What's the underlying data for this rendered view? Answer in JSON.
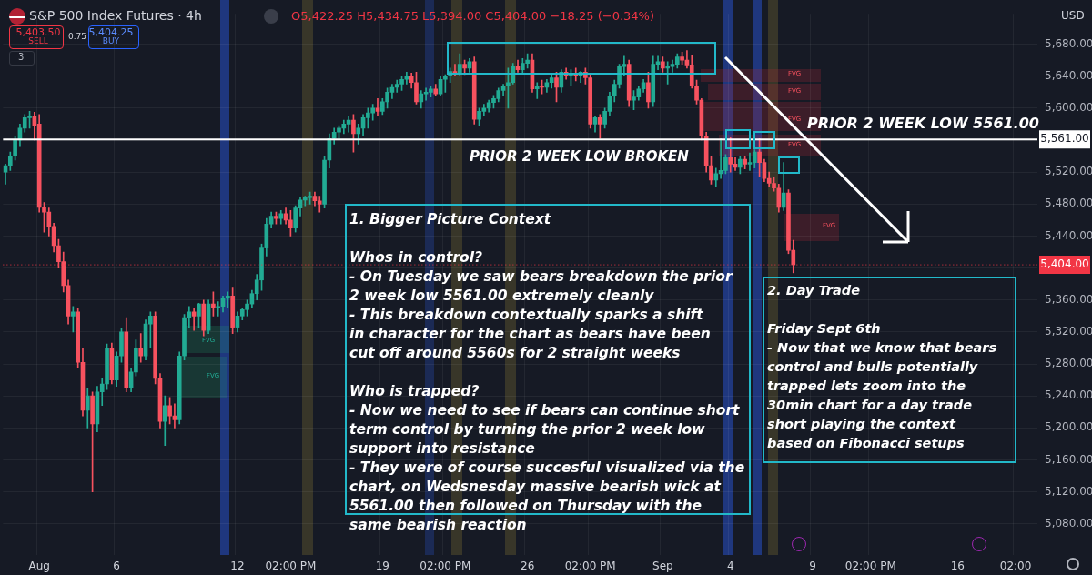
{
  "chart_data": {
    "type": "candlestick",
    "title": "S&P 500 Index Futures · 4h",
    "subtitle": "O5,422.25 H5,434.75 L5,394.00 C5,404.00 −18.25 (−0.34%)",
    "categories": [
      null,
      null,
      null,
      null,
      null,
      null,
      null,
      "Aug",
      null,
      null,
      null,
      null,
      null,
      null,
      null,
      null,
      null,
      null,
      null,
      null,
      null,
      null,
      null,
      "6",
      null,
      null,
      null,
      null,
      null,
      null,
      null,
      null,
      null,
      null,
      null,
      null,
      null,
      null,
      null,
      null,
      null,
      null,
      null,
      null,
      null,
      null,
      null,
      null,
      "12",
      null,
      null,
      null,
      null,
      null,
      null,
      null,
      null,
      null,
      null,
      "02:00 PM",
      null,
      null,
      null,
      null,
      null,
      null,
      null,
      null,
      null,
      null,
      null,
      null,
      null,
      null,
      null,
      null,
      null,
      null,
      "19",
      null,
      null,
      null,
      null,
      null,
      null,
      null,
      null,
      null,
      null,
      null,
      null,
      "02:00 PM",
      null,
      null,
      null,
      null,
      null,
      null,
      null,
      null,
      null,
      null,
      null,
      null,
      null,
      null,
      null,
      null,
      "26",
      null,
      null,
      null,
      null,
      null,
      null,
      null,
      null,
      null,
      null,
      null,
      null,
      "02:00 PM",
      null,
      null,
      null,
      null,
      null,
      null,
      null,
      null,
      null,
      null,
      null,
      null,
      null,
      null,
      "Sep",
      null,
      null,
      null,
      null,
      null,
      null,
      null,
      null,
      null,
      null,
      null,
      null,
      null,
      "4",
      null,
      null,
      null,
      null,
      null,
      null,
      null,
      null,
      null,
      null,
      null,
      null,
      null,
      null,
      null,
      null,
      "9",
      null,
      null,
      null,
      null,
      null,
      null,
      null,
      null,
      null,
      null,
      null,
      "02:00 PM",
      null,
      null,
      null,
      null,
      null,
      null,
      null,
      null,
      null,
      null,
      null,
      null,
      null,
      null,
      null,
      null,
      null,
      "16",
      null,
      null,
      null,
      null,
      null,
      null,
      null,
      null,
      null,
      null,
      null,
      "02:00",
      null,
      null,
      null,
      null
    ],
    "ohlc": [
      [
        5520,
        5530,
        5505,
        5528
      ],
      [
        5528,
        5545,
        5522,
        5540
      ],
      [
        5540,
        5565,
        5535,
        5560
      ],
      [
        5560,
        5580,
        5552,
        5575
      ],
      [
        5575,
        5592,
        5570,
        5588
      ],
      [
        5588,
        5596,
        5575,
        5590
      ],
      [
        5590,
        5595,
        5560,
        5578
      ],
      [
        5580,
        5592,
        5470,
        5476
      ],
      [
        5476,
        5482,
        5445,
        5470
      ],
      [
        5470,
        5475,
        5440,
        5452
      ],
      [
        5452,
        5456,
        5420,
        5428
      ],
      [
        5428,
        5436,
        5400,
        5408
      ],
      [
        5408,
        5420,
        5370,
        5378
      ],
      [
        5378,
        5385,
        5330,
        5340
      ],
      [
        5340,
        5352,
        5320,
        5345
      ],
      [
        5345,
        5350,
        5275,
        5282
      ],
      [
        5282,
        5300,
        5215,
        5222
      ],
      [
        5222,
        5250,
        5200,
        5240
      ],
      [
        5240,
        5245,
        5120,
        5205
      ],
      [
        5205,
        5252,
        5195,
        5245
      ],
      [
        5245,
        5262,
        5228,
        5255
      ],
      [
        5255,
        5305,
        5248,
        5300
      ],
      [
        5300,
        5306,
        5255,
        5260
      ],
      [
        5260,
        5295,
        5252,
        5290
      ],
      [
        5290,
        5325,
        5282,
        5320
      ],
      [
        5320,
        5338,
        5245,
        5250
      ],
      [
        5250,
        5275,
        5245,
        5270
      ],
      [
        5270,
        5310,
        5265,
        5300
      ],
      [
        5300,
        5318,
        5282,
        5290
      ],
      [
        5290,
        5335,
        5285,
        5330
      ],
      [
        5330,
        5345,
        5300,
        5340
      ],
      [
        5340,
        5345,
        5255,
        5262
      ],
      [
        5262,
        5268,
        5200,
        5208
      ],
      [
        5208,
        5240,
        5178,
        5228
      ],
      [
        5228,
        5238,
        5205,
        5215
      ],
      [
        5215,
        5230,
        5200,
        5210
      ],
      [
        5210,
        5295,
        5205,
        5290
      ],
      [
        5290,
        5342,
        5285,
        5338
      ],
      [
        5338,
        5352,
        5325,
        5345
      ],
      [
        5345,
        5350,
        5322,
        5340
      ],
      [
        5340,
        5356,
        5325,
        5355
      ],
      [
        5355,
        5360,
        5315,
        5322
      ],
      [
        5322,
        5360,
        5318,
        5355
      ],
      [
        5355,
        5370,
        5340,
        5350
      ],
      [
        5350,
        5358,
        5340,
        5352
      ],
      [
        5352,
        5365,
        5345,
        5362
      ],
      [
        5362,
        5370,
        5350,
        5365
      ],
      [
        5365,
        5375,
        5318,
        5326
      ],
      [
        5326,
        5345,
        5320,
        5340
      ],
      [
        5340,
        5350,
        5335,
        5348
      ],
      [
        5348,
        5360,
        5340,
        5355
      ],
      [
        5355,
        5372,
        5350,
        5368
      ],
      [
        5368,
        5392,
        5360,
        5385
      ],
      [
        5385,
        5430,
        5372,
        5425
      ],
      [
        5425,
        5462,
        5415,
        5455
      ],
      [
        5455,
        5470,
        5450,
        5465
      ],
      [
        5465,
        5470,
        5455,
        5462
      ],
      [
        5462,
        5472,
        5455,
        5468
      ],
      [
        5468,
        5475,
        5455,
        5460
      ],
      [
        5460,
        5472,
        5440,
        5450
      ],
      [
        5450,
        5478,
        5445,
        5475
      ],
      [
        5475,
        5488,
        5465,
        5485
      ],
      [
        5485,
        5490,
        5478,
        5488
      ],
      [
        5488,
        5495,
        5480,
        5490
      ],
      [
        5490,
        5495,
        5478,
        5484
      ],
      [
        5484,
        5490,
        5470,
        5480
      ],
      [
        5480,
        5540,
        5475,
        5535
      ],
      [
        5535,
        5568,
        5525,
        5562
      ],
      [
        5562,
        5575,
        5555,
        5570
      ],
      [
        5570,
        5578,
        5562,
        5575
      ],
      [
        5575,
        5585,
        5568,
        5580
      ],
      [
        5580,
        5590,
        5570,
        5585
      ],
      [
        5585,
        5592,
        5545,
        5568
      ],
      [
        5568,
        5580,
        5555,
        5575
      ],
      [
        5575,
        5592,
        5565,
        5588
      ],
      [
        5588,
        5600,
        5575,
        5594
      ],
      [
        5594,
        5605,
        5585,
        5600
      ],
      [
        5600,
        5612,
        5590,
        5596
      ],
      [
        5596,
        5612,
        5592,
        5608
      ],
      [
        5608,
        5625,
        5600,
        5620
      ],
      [
        5620,
        5630,
        5612,
        5626
      ],
      [
        5626,
        5635,
        5620,
        5630
      ],
      [
        5630,
        5640,
        5622,
        5636
      ],
      [
        5636,
        5645,
        5630,
        5640
      ],
      [
        5640,
        5644,
        5625,
        5632
      ],
      [
        5632,
        5645,
        5605,
        5608
      ],
      [
        5608,
        5622,
        5600,
        5618
      ],
      [
        5618,
        5625,
        5610,
        5620
      ],
      [
        5620,
        5628,
        5614,
        5624
      ],
      [
        5624,
        5630,
        5615,
        5618
      ],
      [
        5618,
        5640,
        5615,
        5636
      ],
      [
        5636,
        5642,
        5620,
        5640
      ],
      [
        5640,
        5650,
        5632,
        5646
      ],
      [
        5646,
        5655,
        5640,
        5644
      ],
      [
        5644,
        5668,
        5640,
        5655
      ],
      [
        5655,
        5660,
        5642,
        5650
      ],
      [
        5650,
        5662,
        5645,
        5658
      ],
      [
        5658,
        5664,
        5580,
        5586
      ],
      [
        5586,
        5600,
        5578,
        5596
      ],
      [
        5596,
        5605,
        5590,
        5600
      ],
      [
        5600,
        5610,
        5595,
        5607
      ],
      [
        5607,
        5616,
        5600,
        5612
      ],
      [
        5612,
        5625,
        5608,
        5622
      ],
      [
        5622,
        5630,
        5615,
        5628
      ],
      [
        5628,
        5650,
        5600,
        5632
      ],
      [
        5632,
        5656,
        5630,
        5652
      ],
      [
        5652,
        5660,
        5645,
        5648
      ],
      [
        5648,
        5662,
        5644,
        5656
      ],
      [
        5656,
        5668,
        5650,
        5660
      ],
      [
        5660,
        5668,
        5620,
        5624
      ],
      [
        5624,
        5632,
        5612,
        5628
      ],
      [
        5628,
        5635,
        5618,
        5626
      ],
      [
        5626,
        5636,
        5620,
        5632
      ],
      [
        5632,
        5642,
        5625,
        5638
      ],
      [
        5638,
        5645,
        5608,
        5626
      ],
      [
        5626,
        5648,
        5620,
        5645
      ],
      [
        5645,
        5650,
        5636,
        5640
      ],
      [
        5640,
        5648,
        5628,
        5644
      ],
      [
        5644,
        5650,
        5634,
        5640
      ],
      [
        5640,
        5646,
        5632,
        5645
      ],
      [
        5645,
        5650,
        5630,
        5638
      ],
      [
        5638,
        5642,
        5575,
        5580
      ],
      [
        5580,
        5590,
        5570,
        5588
      ],
      [
        5588,
        5592,
        5562,
        5580
      ],
      [
        5580,
        5600,
        5575,
        5596
      ],
      [
        5596,
        5620,
        5590,
        5615
      ],
      [
        5615,
        5635,
        5608,
        5630
      ],
      [
        5630,
        5655,
        5625,
        5652
      ],
      [
        5652,
        5665,
        5640,
        5655
      ],
      [
        5655,
        5660,
        5602,
        5610
      ],
      [
        5610,
        5622,
        5598,
        5614
      ],
      [
        5614,
        5628,
        5610,
        5624
      ],
      [
        5624,
        5636,
        5620,
        5632
      ],
      [
        5632,
        5645,
        5600,
        5608
      ],
      [
        5608,
        5665,
        5602,
        5655
      ],
      [
        5655,
        5665,
        5648,
        5658
      ],
      [
        5658,
        5664,
        5645,
        5650
      ],
      [
        5650,
        5658,
        5630,
        5652
      ],
      [
        5652,
        5660,
        5645,
        5655
      ],
      [
        5655,
        5668,
        5650,
        5664
      ],
      [
        5664,
        5670,
        5655,
        5660
      ],
      [
        5660,
        5672,
        5650,
        5654
      ],
      [
        5654,
        5666,
        5625,
        5628
      ],
      [
        5628,
        5635,
        5605,
        5610
      ],
      [
        5610,
        5612,
        5560,
        5565
      ],
      [
        5565,
        5570,
        5520,
        5528
      ],
      [
        5528,
        5540,
        5505,
        5510
      ],
      [
        5510,
        5525,
        5502,
        5518
      ],
      [
        5518,
        5562,
        5512,
        5522
      ],
      [
        5522,
        5542,
        5518,
        5538
      ],
      [
        5538,
        5563,
        5520,
        5530
      ],
      [
        5530,
        5538,
        5522,
        5526
      ],
      [
        5526,
        5540,
        5518,
        5536
      ],
      [
        5536,
        5540,
        5524,
        5530
      ],
      [
        5530,
        5544,
        5522,
        5532
      ],
      [
        5532,
        5548,
        5525,
        5545
      ],
      [
        5545,
        5562,
        5515,
        5532
      ],
      [
        5532,
        5536,
        5508,
        5512
      ],
      [
        5512,
        5520,
        5502,
        5506
      ],
      [
        5506,
        5514,
        5496,
        5500
      ],
      [
        5500,
        5505,
        5470,
        5476
      ],
      [
        5476,
        5532,
        5472,
        5494
      ],
      [
        5494,
        5498,
        5418,
        5422
      ],
      [
        5422.25,
        5434.75,
        5394,
        5404
      ],
      null,
      null,
      null,
      null,
      null,
      null,
      null,
      null,
      null,
      null,
      null,
      null,
      null,
      null,
      null,
      null,
      null,
      null,
      null,
      null,
      null,
      null,
      null,
      null,
      null,
      null,
      null,
      null,
      null,
      null,
      null,
      null,
      null,
      null,
      null,
      null,
      null,
      null,
      null,
      null,
      null,
      null,
      null,
      null,
      null,
      null,
      null,
      null,
      null,
      null
    ],
    "colors": [
      "#22ab94",
      "#22ab94",
      "#22ab94",
      "#22ab94",
      "#22ab94",
      "#22ab94",
      "#f7525f",
      "#f7525f",
      "#f7525f",
      "#f7525f",
      "#f7525f",
      "#f7525f",
      "#f7525f",
      "#f7525f",
      "#22ab94",
      "#f7525f",
      "#f7525f",
      "#22ab94",
      "#f7525f",
      "#22ab94",
      "#22ab94",
      "#22ab94",
      "#f7525f",
      "#22ab94",
      "#22ab94",
      "#f7525f",
      "#22ab94",
      "#22ab94",
      "#f7525f",
      "#22ab94",
      "#22ab94",
      "#f7525f",
      "#f7525f",
      "#22ab94",
      "#f7525f",
      "#f7525f",
      "#22ab94",
      "#22ab94",
      "#22ab94",
      "#f7525f",
      "#22ab94",
      "#f7525f",
      "#22ab94",
      "#f7525f",
      "#22ab94",
      "#22ab94",
      "#22ab94",
      "#f7525f",
      "#22ab94",
      "#22ab94",
      "#22ab94",
      "#22ab94",
      "#22ab94",
      "#22ab94",
      "#22ab94",
      "#22ab94",
      "#f7525f",
      "#22ab94",
      "#f7525f",
      "#f7525f",
      "#22ab94",
      "#22ab94",
      "#22ab94",
      "#22ab94",
      "#f7525f",
      "#f7525f",
      "#22ab94",
      "#22ab94",
      "#22ab94",
      "#22ab94",
      "#22ab94",
      "#22ab94",
      "#f7525f",
      "#22ab94",
      "#22ab94",
      "#22ab94",
      "#22ab94",
      "#f7525f",
      "#22ab94",
      "#22ab94",
      "#22ab94",
      "#22ab94",
      "#22ab94",
      "#22ab94",
      "#f7525f",
      "#f7525f",
      "#22ab94",
      "#22ab94",
      "#22ab94",
      "#f7525f",
      "#22ab94",
      "#22ab94",
      "#22ab94",
      "#f7525f",
      "#22ab94",
      "#f7525f",
      "#22ab94",
      "#f7525f",
      "#22ab94",
      "#22ab94",
      "#22ab94",
      "#22ab94",
      "#22ab94",
      "#22ab94",
      "#22ab94",
      "#22ab94",
      "#f7525f",
      "#22ab94",
      "#22ab94",
      "#f7525f",
      "#22ab94",
      "#f7525f",
      "#22ab94",
      "#22ab94",
      "#f7525f",
      "#22ab94",
      "#f7525f",
      "#22ab94",
      "#f7525f",
      "#22ab94",
      "#f7525f",
      "#f7525f",
      "#22ab94",
      "#f7525f",
      "#22ab94",
      "#22ab94",
      "#22ab94",
      "#22ab94",
      "#22ab94",
      "#f7525f",
      "#22ab94",
      "#22ab94",
      "#22ab94",
      "#f7525f",
      "#22ab94",
      "#22ab94",
      "#f7525f",
      "#22ab94",
      "#22ab94",
      "#22ab94",
      "#f7525f",
      "#f7525f",
      "#f7525f",
      "#f7525f",
      "#f7525f",
      "#f7525f",
      "#f7525f",
      "#22ab94",
      "#22ab94",
      "#22ab94",
      "#f7525f",
      "#f7525f",
      "#22ab94",
      "#f7525f",
      "#22ab94",
      "#22ab94",
      "#f7525f",
      "#f7525f",
      "#f7525f",
      "#f7525f",
      "#f7525f",
      "#22ab94",
      "#f7525f",
      "#f7525f",
      null,
      null,
      null,
      null,
      null,
      null,
      null,
      null,
      null,
      null,
      null,
      null,
      null,
      null,
      null,
      null,
      null,
      null,
      null,
      null,
      null,
      null,
      null,
      null,
      null,
      null,
      null,
      null,
      null,
      null,
      null,
      null,
      null,
      null,
      null,
      null,
      null,
      null,
      null,
      null,
      null,
      null,
      null,
      null,
      null,
      null,
      null,
      null,
      null,
      null
    ],
    "ylim": [
      5041,
      5718
    ],
    "yticks": [
      {
        "value": 5080,
        "label": "5,080.00"
      },
      {
        "value": 5120,
        "label": "5,120.00"
      },
      {
        "value": 5160,
        "label": "5,160.00"
      },
      {
        "value": 5200,
        "label": "5,200.00"
      },
      {
        "value": 5240,
        "label": "5,240.00"
      },
      {
        "value": 5280,
        "label": "5,280.00"
      },
      {
        "value": 5320,
        "label": "5,320.00"
      },
      {
        "value": 5360,
        "label": "5,360.00"
      },
      {
        "value": 5400,
        "label": null
      },
      {
        "value": 5440,
        "label": "5,440.00"
      },
      {
        "value": 5480,
        "label": "5,480.00"
      },
      {
        "value": 5520,
        "label": "5,520.00"
      },
      {
        "value": 5560,
        "label": null
      },
      {
        "value": 5600,
        "label": "5,600.00"
      },
      {
        "value": 5640,
        "label": "5,640.00"
      },
      {
        "value": 5680,
        "label": "5,680.00"
      }
    ],
    "grid": true,
    "ref_lines": [
      {
        "axis": "y",
        "value": 5561,
        "label": "5,561.00",
        "color": "#ffffff",
        "line_style": "solid"
      },
      {
        "axis": "y",
        "value": 5404,
        "label": "5,404.00",
        "color": "#f23645",
        "line_style": "dotted"
      }
    ],
    "annotations": [
      "PRIOR 2 WEEK LOW 5561.00",
      "PRIOR 2 WEEK LOW BROKEN",
      "1. Bigger Picture Context\n\nWhos in control?\n- On Tuesday we saw bears breakdown the prior\n2 week low 5561.00 extremely cleanly\n- This breakdown contextually sparks a shift\nin character for the chart as bears have been\ncut off around 5560s for 2 straight weeks\n\nWho is trapped?\n- Now we need to see if bears can continue short\nterm control by turning the prior 2 week low\nsupport into resistance\n- They were of course succesful visualized via the\nchart, on Wedsnesday massive bearish wick at\n5561.00 then followed on Thursday with the\nsame bearish reaction",
      "2. Day Trade\n\nFriday Sept 6th\n- Now that we know that bears\ncontrol and bulls potentially\ntrapped lets zoom into the\n30min chart for a day trade\nshort playing the context\nbased on Fibonacci setups",
      "5,403.50",
      "SELL",
      "0.75",
      "5,404.25",
      "BUY",
      "3",
      "USD",
      "FVG",
      "FVG",
      "FVG",
      "FVG",
      "FVG",
      "FVG",
      "FVG"
    ]
  }
}
